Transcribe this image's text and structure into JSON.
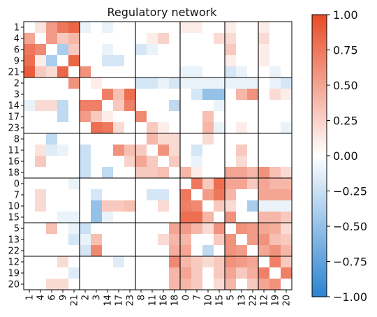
{
  "chart_data": {
    "type": "heatmap",
    "title": "Regulatory network",
    "labels": [
      "1",
      "4",
      "6",
      "9",
      "21",
      "2",
      "3",
      "14",
      "17",
      "23",
      "8",
      "11",
      "16",
      "18",
      "0",
      "7",
      "10",
      "15",
      "5",
      "13",
      "22",
      "12",
      "19",
      "20"
    ],
    "groups": [
      5,
      5,
      4,
      4,
      3,
      3
    ],
    "zlim": [
      -1,
      1
    ],
    "colorbar_ticks": [
      "1.00",
      "0.75",
      "0.50",
      "0.25",
      "0.00",
      "−0.25",
      "−0.50",
      "−0.75",
      "−1.00"
    ],
    "colormap": {
      "negative": "#2b83d1",
      "zero": "#ffffff",
      "positive": "#e84a26"
    },
    "values": [
      [
        0.0,
        0.15,
        0.55,
        0.75,
        0.85,
        -0.1,
        0.0,
        -0.1,
        0.0,
        0.0,
        0.0,
        0.0,
        0.0,
        0.0,
        0.1,
        0.1,
        0.0,
        0.0,
        0.1,
        0.0,
        0.0,
        0.1,
        0.0,
        0.0
      ],
      [
        0.5,
        0.0,
        0.55,
        0.3,
        0.4,
        0.0,
        0.0,
        0.0,
        0.0,
        0.0,
        0.0,
        0.1,
        0.25,
        0.0,
        0.0,
        0.0,
        0.0,
        0.2,
        0.2,
        0.0,
        0.0,
        0.2,
        0.0,
        0.0
      ],
      [
        0.75,
        0.65,
        0.0,
        -0.4,
        0.3,
        0.0,
        0.0,
        -0.1,
        0.0,
        0.0,
        -0.2,
        -0.1,
        0.0,
        0.0,
        0.0,
        0.0,
        0.0,
        0.0,
        0.3,
        0.0,
        0.0,
        0.1,
        0.0,
        0.0
      ],
      [
        0.8,
        0.1,
        -0.4,
        0.0,
        0.85,
        0.0,
        0.0,
        -0.2,
        -0.2,
        0.0,
        0.0,
        0.0,
        0.0,
        0.0,
        0.0,
        0.0,
        0.0,
        0.0,
        0.1,
        0.0,
        0.0,
        0.1,
        0.0,
        0.0
      ],
      [
        0.9,
        0.3,
        0.2,
        0.85,
        0.0,
        0.6,
        0.0,
        0.0,
        0.0,
        0.0,
        0.0,
        0.0,
        0.0,
        0.0,
        -0.1,
        -0.1,
        0.0,
        0.0,
        -0.2,
        -0.1,
        0.0,
        0.0,
        -0.1,
        0.0
      ],
      [
        0.0,
        0.0,
        0.0,
        0.0,
        0.6,
        0.0,
        0.1,
        0.0,
        0.0,
        0.0,
        -0.2,
        -0.2,
        -0.1,
        -0.2,
        -0.1,
        -0.1,
        -0.1,
        -0.1,
        -0.1,
        -0.1,
        -0.1,
        0.0,
        -0.1,
        -0.2
      ],
      [
        0.0,
        0.0,
        0.0,
        0.0,
        0.0,
        0.0,
        0.0,
        0.7,
        0.35,
        0.8,
        0.0,
        0.0,
        0.0,
        0.0,
        0.0,
        -0.2,
        -0.5,
        -0.5,
        0.0,
        0.4,
        0.6,
        0.0,
        0.2,
        0.1
      ],
      [
        -0.1,
        0.2,
        0.2,
        -0.3,
        0.0,
        0.7,
        0.7,
        0.0,
        0.3,
        0.7,
        0.0,
        0.0,
        0.0,
        -0.3,
        0.0,
        0.0,
        0.0,
        -0.1,
        0.0,
        0.0,
        0.0,
        0.0,
        0.0,
        0.0
      ],
      [
        0.0,
        0.0,
        0.0,
        -0.3,
        0.0,
        0.55,
        0.3,
        0.1,
        0.0,
        0.0,
        0.65,
        0.0,
        0.0,
        0.0,
        0.0,
        0.0,
        0.35,
        0.0,
        0.0,
        0.0,
        0.0,
        0.0,
        0.0,
        0.0
      ],
      [
        0.0,
        0.0,
        0.0,
        0.0,
        0.0,
        0.0,
        0.8,
        0.75,
        0.2,
        0.0,
        0.0,
        0.3,
        0.1,
        0.0,
        0.0,
        0.0,
        0.4,
        -0.1,
        0.0,
        0.1,
        0.0,
        0.0,
        0.0,
        -0.1
      ],
      [
        0.0,
        0.0,
        -0.3,
        0.0,
        0.0,
        0.0,
        0.0,
        0.0,
        0.0,
        0.0,
        0.0,
        0.4,
        0.2,
        0.2,
        0.0,
        0.0,
        0.2,
        0.0,
        0.0,
        0.0,
        0.0,
        0.0,
        0.0,
        0.0
      ],
      [
        0.0,
        0.15,
        -0.15,
        -0.1,
        0.0,
        -0.25,
        0.0,
        0.0,
        0.6,
        0.35,
        0.3,
        0.0,
        0.6,
        0.2,
        0.0,
        -0.2,
        0.0,
        0.0,
        0.0,
        0.3,
        0.0,
        0.0,
        0.0,
        0.0
      ],
      [
        0.0,
        0.3,
        0.0,
        0.0,
        0.0,
        -0.25,
        0.0,
        0.0,
        0.0,
        0.25,
        0.5,
        0.3,
        0.0,
        0.3,
        0.0,
        -0.1,
        0.0,
        0.0,
        0.0,
        0.2,
        0.0,
        0.0,
        0.0,
        0.0
      ],
      [
        0.0,
        0.0,
        0.0,
        0.0,
        0.0,
        -0.25,
        0.0,
        -0.3,
        0.0,
        0.0,
        0.3,
        0.3,
        0.35,
        0.0,
        0.4,
        0.1,
        0.0,
        0.0,
        0.5,
        0.5,
        0.4,
        0.6,
        0.35,
        0.2
      ],
      [
        0.0,
        0.0,
        0.0,
        0.0,
        -0.1,
        0.0,
        0.0,
        0.0,
        0.0,
        0.0,
        0.0,
        0.0,
        0.0,
        0.0,
        0.0,
        0.75,
        0.3,
        0.8,
        0.5,
        0.5,
        0.3,
        0.5,
        0.4,
        0.4
      ],
      [
        0.0,
        0.2,
        0.0,
        0.0,
        0.0,
        0.0,
        -0.2,
        0.0,
        0.0,
        0.0,
        0.0,
        -0.2,
        -0.2,
        0.0,
        0.75,
        0.0,
        0.55,
        0.75,
        0.4,
        0.0,
        0.0,
        0.5,
        0.5,
        0.5
      ],
      [
        0.0,
        0.2,
        0.0,
        0.0,
        0.0,
        0.0,
        -0.5,
        0.3,
        0.3,
        0.35,
        0.0,
        0.0,
        0.2,
        0.0,
        0.7,
        0.65,
        0.0,
        0.3,
        0.2,
        0.0,
        -0.4,
        -0.1,
        -0.1,
        -0.1
      ],
      [
        0.0,
        0.0,
        0.0,
        -0.1,
        -0.1,
        0.0,
        -0.5,
        -0.1,
        0.0,
        0.0,
        0.0,
        0.0,
        0.0,
        0.0,
        0.8,
        0.8,
        0.4,
        0.0,
        0.6,
        0.0,
        0.0,
        0.4,
        0.4,
        0.3
      ],
      [
        0.0,
        0.0,
        0.35,
        0.0,
        -0.1,
        -0.25,
        0.0,
        0.0,
        0.0,
        0.0,
        0.0,
        0.0,
        0.0,
        0.5,
        0.55,
        0.4,
        0.2,
        0.6,
        0.0,
        0.6,
        0.55,
        0.5,
        0.45,
        0.2
      ],
      [
        0.0,
        0.0,
        0.0,
        0.0,
        -0.2,
        -0.1,
        0.35,
        0.0,
        0.0,
        0.0,
        0.0,
        0.0,
        0.2,
        0.4,
        0.4,
        0.0,
        0.0,
        0.3,
        0.6,
        0.0,
        0.55,
        0.6,
        0.35,
        0.3
      ],
      [
        0.0,
        0.0,
        0.0,
        0.0,
        0.0,
        -0.2,
        0.65,
        0.0,
        0.0,
        0.0,
        0.0,
        0.0,
        0.0,
        0.45,
        0.5,
        0.0,
        -0.3,
        0.0,
        0.6,
        0.55,
        0.0,
        0.5,
        0.6,
        0.4
      ],
      [
        0.0,
        0.0,
        0.0,
        0.2,
        0.0,
        0.0,
        0.0,
        0.0,
        -0.15,
        0.0,
        0.0,
        0.0,
        0.0,
        0.65,
        0.4,
        0.3,
        0.2,
        0.3,
        0.6,
        0.55,
        0.5,
        0.0,
        0.7,
        0.3
      ],
      [
        0.0,
        0.0,
        0.0,
        0.0,
        -0.15,
        0.0,
        0.0,
        0.0,
        0.0,
        0.0,
        0.0,
        0.0,
        0.0,
        0.4,
        0.5,
        0.3,
        0.0,
        0.3,
        0.5,
        0.3,
        0.45,
        0.7,
        0.0,
        0.7
      ],
      [
        0.0,
        0.0,
        0.2,
        0.2,
        0.0,
        0.0,
        0.0,
        0.0,
        0.0,
        0.0,
        0.0,
        0.0,
        0.0,
        0.4,
        0.4,
        0.3,
        0.0,
        0.2,
        0.4,
        0.0,
        0.3,
        0.5,
        0.6,
        0.0
      ]
    ]
  }
}
